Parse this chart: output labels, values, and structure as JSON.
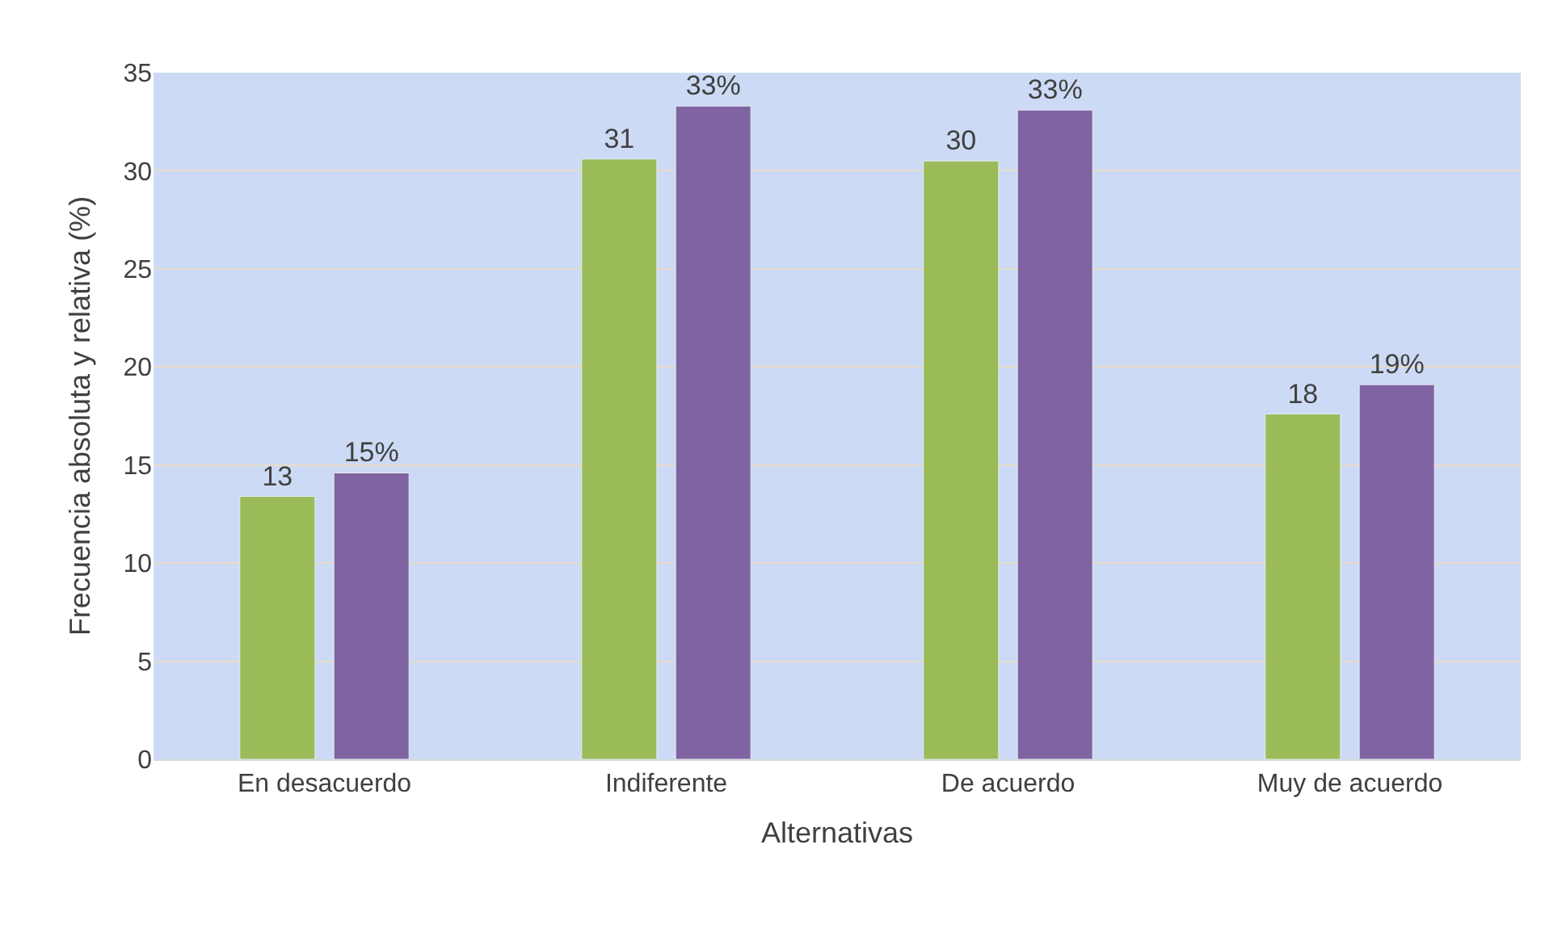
{
  "chart_data": {
    "type": "bar",
    "xlabel": "Alternativas",
    "ylabel": "Frecuencia absoluta y relativa (%)",
    "categories": [
      "En desacuerdo",
      "Indiferente",
      "De acuerdo",
      "Muy de acuerdo"
    ],
    "series": [
      {
        "color": "#9bbb59",
        "values": [
          13.4,
          30.6,
          30.5,
          17.6
        ],
        "value_labels": [
          "13",
          "31",
          "30",
          "18"
        ]
      },
      {
        "color": "#8064a2",
        "values": [
          14.6,
          33.3,
          33.1,
          19.1
        ],
        "value_labels": [
          "15%",
          "33%",
          "33%",
          "19%"
        ]
      }
    ],
    "ylim": [
      0,
      35
    ],
    "yticks": [
      0,
      5,
      10,
      15,
      20,
      25,
      30,
      35
    ],
    "grid": "y"
  }
}
